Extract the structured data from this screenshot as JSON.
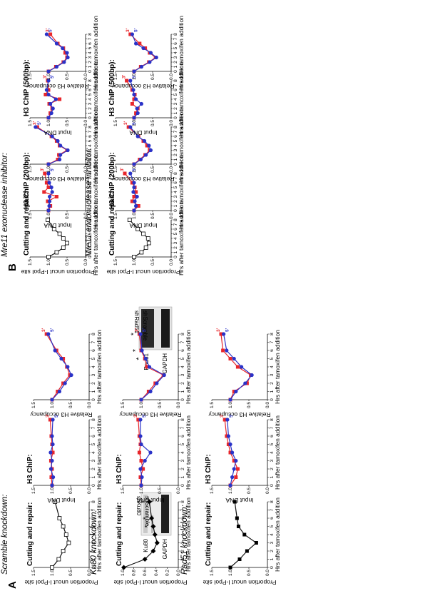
{
  "panel_labels": {
    "A": "A",
    "B": "B"
  },
  "groups": [
    {
      "title": "Scramble knockdown:"
    },
    {
      "title": "Ku80 knockdown:",
      "blot": {
        "lanes": [
          "shScramble",
          "shKu80"
        ],
        "rows": [
          "Ku80",
          "GAPDH"
        ]
      }
    },
    {
      "title": "Rad51 knockdown:",
      "blot": {
        "lanes": [
          "shScramble",
          "shRad51"
        ],
        "rows": [
          "Rad51",
          "GAPDH"
        ]
      }
    },
    {
      "title": "Mre11 exonuclease inhibitor:"
    },
    {
      "title": "Mre11 endonuclease inhibitor:"
    }
  ],
  "labels": {
    "cutting": "Cutting and repair:",
    "h3chip": "H3 ChIP:",
    "h3chip200": "H3 ChIP (200bp):",
    "h3chip500": "H3 ChIP (500bp):",
    "y_cut": "Proportion uncut I-PpoI site",
    "y_input": "Input DNA",
    "y_occ": "Relative H3 occupancy",
    "x": "Hrs after tamoxifen addition",
    "end3": "3'",
    "end5": "5'",
    "star": "*"
  },
  "colors": {
    "red": "#e8262b",
    "blue": "#2a32c8",
    "black": "#111111"
  },
  "chart_data": [
    {
      "type": "line",
      "panel": "A",
      "group": "Scramble knockdown",
      "title": "Cutting and repair:",
      "xlabel": "Hrs after tamoxifen addition",
      "ylabel": "Proportion uncut I-PpoI site",
      "xlim": [
        0,
        8
      ],
      "ylim": [
        0,
        1.5
      ],
      "x": [
        0,
        1,
        2,
        3,
        4,
        5,
        6,
        8
      ],
      "series": [
        {
          "values": [
            1.0,
            0.82,
            0.7,
            0.55,
            0.62,
            0.7,
            0.8,
            0.92
          ],
          "color": "black",
          "marker": "open-square"
        }
      ]
    },
    {
      "type": "line",
      "panel": "A",
      "group": "Scramble knockdown",
      "title": "H3 ChIP:",
      "xlabel": "Hrs after tamoxifen addition",
      "ylabel": "Input DNA",
      "xlim": [
        0,
        8
      ],
      "ylim": [
        0,
        1.5
      ],
      "x": [
        0,
        1,
        2,
        3,
        4,
        5,
        6,
        8
      ],
      "series": [
        {
          "name": "3'",
          "values": [
            1.0,
            1.02,
            1.0,
            1.03,
            0.98,
            1.0,
            1.02,
            1.05
          ],
          "color": "red"
        },
        {
          "name": "5'",
          "values": [
            1.0,
            0.97,
            1.03,
            1.0,
            1.04,
            0.98,
            1.0,
            0.98
          ],
          "color": "blue"
        }
      ]
    },
    {
      "type": "line",
      "panel": "A",
      "group": "Scramble knockdown",
      "title": "",
      "xlabel": "Hrs after tamoxifen addition",
      "ylabel": "Relative H3 occupancy",
      "xlim": [
        0,
        8
      ],
      "ylim": [
        0,
        1.5
      ],
      "x": [
        0,
        1,
        2,
        3,
        4,
        5,
        6,
        8
      ],
      "series": [
        {
          "name": "3'",
          "values": [
            1.0,
            0.85,
            0.7,
            0.52,
            0.6,
            0.7,
            0.88,
            1.15
          ],
          "color": "red"
        },
        {
          "name": "5'",
          "values": [
            1.0,
            0.8,
            0.65,
            0.48,
            0.58,
            0.75,
            0.92,
            1.1
          ],
          "color": "blue"
        }
      ]
    },
    {
      "type": "line",
      "panel": "A",
      "group": "Ku80 knockdown",
      "title": "Cutting and repair:",
      "xlabel": "Hrs after tamoxifen addition",
      "ylabel": "Proportion uncut I-PpoI site",
      "xlim": [
        0,
        8
      ],
      "ylim": [
        0,
        1.0
      ],
      "x": [
        0,
        1,
        2,
        3,
        4,
        5,
        6,
        8
      ],
      "series": [
        {
          "values": [
            0.98,
            0.6,
            0.45,
            0.38,
            0.42,
            0.45,
            0.48,
            0.52
          ],
          "color": "black",
          "marker": "filled-diamond"
        }
      ]
    },
    {
      "type": "line",
      "panel": "A",
      "group": "Ku80 knockdown",
      "title": "H3 ChIP:",
      "xlabel": "Hrs after tamoxifen addition",
      "ylabel": "Input DNA",
      "xlim": [
        0,
        8
      ],
      "ylim": [
        0,
        1.5
      ],
      "x": [
        0,
        1,
        2,
        3,
        4,
        5,
        6,
        8
      ],
      "series": [
        {
          "name": "3'",
          "values": [
            1.0,
            1.02,
            0.95,
            1.0,
            1.05,
            1.02,
            1.05,
            1.08
          ],
          "color": "red"
        },
        {
          "name": "5'",
          "values": [
            1.0,
            0.98,
            1.02,
            0.9,
            0.75,
            1.0,
            1.02,
            1.02
          ],
          "color": "blue"
        }
      ]
    },
    {
      "type": "line",
      "panel": "A",
      "group": "Ku80 knockdown",
      "title": "",
      "xlabel": "Hrs after tamoxifen addition",
      "ylabel": "Relative H3 occupancy",
      "xlim": [
        0,
        8
      ],
      "ylim": [
        0,
        1.5
      ],
      "x": [
        0,
        1,
        2,
        3,
        4,
        5,
        6,
        8
      ],
      "series": [
        {
          "name": "3'",
          "values": [
            1.0,
            0.8,
            0.62,
            0.4,
            0.85,
            0.9,
            1.0,
            1.05
          ],
          "color": "red"
        },
        {
          "name": "5'",
          "values": [
            1.0,
            0.75,
            0.58,
            0.38,
            0.78,
            0.88,
            0.98,
            1.02
          ],
          "color": "blue"
        }
      ]
    },
    {
      "type": "line",
      "panel": "A",
      "group": "Rad51 knockdown",
      "title": "Cutting and repair:",
      "xlabel": "Hrs after tamoxifen addition",
      "ylabel": "Proportion uncut I-PpoI site",
      "xlim": [
        0,
        8
      ],
      "ylim": [
        0,
        1.5
      ],
      "x": [
        0,
        1,
        2,
        3,
        4,
        5,
        6,
        8
      ],
      "series": [
        {
          "values": [
            1.0,
            0.75,
            0.55,
            0.3,
            0.62,
            0.78,
            0.82,
            0.88
          ],
          "color": "black",
          "marker": "filled-square"
        }
      ]
    },
    {
      "type": "line",
      "panel": "A",
      "group": "Rad51 knockdown",
      "title": "H3 ChIP:",
      "xlabel": "Hrs after tamoxifen addition",
      "ylabel": "Input DNA",
      "xlim": [
        0,
        8
      ],
      "ylim": [
        0,
        1.5
      ],
      "x": [
        0,
        1,
        2,
        3,
        4,
        5,
        6,
        8
      ],
      "series": [
        {
          "name": "3'",
          "values": [
            1.0,
            0.85,
            0.8,
            0.9,
            1.0,
            1.05,
            1.1,
            1.15
          ],
          "color": "red"
        },
        {
          "name": "5'",
          "values": [
            1.0,
            0.95,
            0.9,
            0.85,
            0.95,
            1.0,
            1.05,
            1.08
          ],
          "color": "blue"
        }
      ]
    },
    {
      "type": "line",
      "panel": "A",
      "group": "Rad51 knockdown",
      "title": "",
      "xlabel": "Hrs after tamoxifen addition",
      "ylabel": "Relative H3 occupancy",
      "xlim": [
        0,
        8
      ],
      "ylim": [
        0,
        1.5
      ],
      "x": [
        0,
        1,
        2,
        3,
        4,
        5,
        6,
        8
      ],
      "series": [
        {
          "name": "3'",
          "values": [
            1.0,
            0.9,
            0.55,
            0.45,
            0.8,
            1.0,
            1.2,
            1.25
          ],
          "color": "red"
        },
        {
          "name": "5'",
          "values": [
            1.0,
            0.85,
            0.6,
            0.42,
            0.7,
            0.9,
            1.1,
            1.18
          ],
          "color": "blue"
        }
      ]
    },
    {
      "type": "line",
      "panel": "B",
      "group": "Mre11 exonuclease inhibitor",
      "title": "Cutting and repair:",
      "xlabel": "Hrs after tamoxifen addition",
      "ylabel": "Proportion uncut I-PpoI site",
      "xlim": [
        0,
        8
      ],
      "ylim": [
        0,
        1.5
      ],
      "x": [
        0,
        1,
        2,
        3,
        4,
        5,
        6,
        8
      ],
      "series": [
        {
          "values": [
            1.0,
            0.78,
            0.6,
            0.5,
            0.6,
            0.7,
            0.85,
            1.02
          ],
          "color": "black",
          "marker": "open-square"
        }
      ]
    },
    {
      "type": "line",
      "panel": "B",
      "group": "Mre11 exonuclease inhibitor",
      "title": "H3 ChIP (200bp):",
      "xlabel": "Hrs after tamoxifen addition",
      "ylabel": "Input DNA",
      "xlim": [
        0,
        8
      ],
      "ylim": [
        0,
        1.5
      ],
      "x": [
        0,
        1,
        2,
        3,
        4,
        5,
        6,
        8
      ],
      "series": [
        {
          "name": "3'",
          "values": [
            1.0,
            0.95,
            1.02,
            0.78,
            1.12,
            1.0,
            1.05,
            1.1
          ],
          "color": "red"
        },
        {
          "name": "5'",
          "values": [
            1.0,
            0.98,
            0.97,
            0.97,
            0.9,
            0.92,
            0.98,
            1.0
          ],
          "color": "blue"
        }
      ]
    },
    {
      "type": "line",
      "panel": "B",
      "group": "Mre11 exonuclease inhibitor",
      "title": "",
      "xlabel": "Hrs after tamoxifen addition",
      "ylabel": "Relative H3 occupancy",
      "xlim": [
        0,
        8
      ],
      "ylim": [
        0,
        1.5
      ],
      "x": [
        0,
        1,
        2,
        3,
        4,
        5,
        6,
        8
      ],
      "series": [
        {
          "name": "3'",
          "values": [
            1.0,
            0.75,
            0.72,
            0.5,
            0.7,
            0.78,
            0.92,
            1.3
          ],
          "color": "red"
        },
        {
          "name": "5'",
          "values": [
            1.0,
            0.7,
            0.68,
            0.48,
            0.68,
            0.75,
            0.9,
            1.35
          ],
          "color": "blue"
        }
      ]
    },
    {
      "type": "line",
      "panel": "B",
      "group": "Mre11 exonuclease inhibitor",
      "title": "H3 ChIP (500bp):",
      "xlabel": "Hrs after tamoxifen addition",
      "ylabel": "Input DNA",
      "xlim": [
        0,
        8
      ],
      "ylim": [
        0,
        1.5
      ],
      "x": [
        0,
        1,
        2,
        3,
        4,
        5,
        6,
        8
      ],
      "series": [
        {
          "name": "3'",
          "values": [
            1.0,
            0.95,
            0.9,
            0.98,
            0.7,
            1.08,
            1.0,
            1.02
          ],
          "color": "red"
        },
        {
          "name": "5'",
          "values": [
            1.0,
            0.92,
            0.88,
            0.95,
            0.8,
            1.0,
            1.05,
            1.0
          ],
          "color": "blue"
        }
      ]
    },
    {
      "type": "line",
      "panel": "B",
      "group": "Mre11 exonuclease inhibitor",
      "title": "",
      "xlabel": "Hrs after tamoxifen addition",
      "ylabel": "Relative H3 occupancy",
      "xlim": [
        0,
        8
      ],
      "ylim": [
        0,
        1.5
      ],
      "x": [
        0,
        1,
        2,
        3,
        4,
        5,
        6,
        8
      ],
      "series": [
        {
          "name": "3'",
          "values": [
            1.0,
            0.8,
            0.6,
            0.5,
            0.55,
            0.6,
            0.75,
            0.95
          ],
          "color": "red"
        },
        {
          "name": "5'",
          "values": [
            1.0,
            0.78,
            0.58,
            0.48,
            0.5,
            0.62,
            0.78,
            1.05
          ],
          "color": "blue"
        }
      ]
    },
    {
      "type": "line",
      "panel": "B",
      "group": "Mre11 endonuclease inhibitor",
      "title": "Cutting and repair:",
      "xlabel": "Hrs after tamoxifen addition",
      "ylabel": "Proportion uncut I-PpoI site",
      "xlim": [
        0,
        8
      ],
      "ylim": [
        0,
        1.5
      ],
      "x": [
        0,
        1,
        2,
        3,
        4,
        5,
        6,
        8
      ],
      "series": [
        {
          "values": [
            1.0,
            0.8,
            0.68,
            0.6,
            0.62,
            0.75,
            0.9,
            1.12
          ],
          "color": "black",
          "marker": "open-square"
        }
      ]
    },
    {
      "type": "line",
      "panel": "B",
      "group": "Mre11 endonuclease inhibitor",
      "title": "H3 ChIP (200bp):",
      "xlabel": "Hrs after tamoxifen addition",
      "ylabel": "Input DNA",
      "xlim": [
        0,
        8
      ],
      "ylim": [
        0,
        1.5
      ],
      "x": [
        0,
        1,
        2,
        3,
        4,
        5,
        6,
        8
      ],
      "series": [
        {
          "name": "3'",
          "values": [
            1.0,
            0.88,
            1.05,
            1.0,
            0.95,
            0.98,
            1.05,
            1.25
          ],
          "color": "red"
        },
        {
          "name": "5'",
          "values": [
            1.0,
            0.95,
            0.98,
            0.92,
            1.02,
            1.0,
            1.0,
            1.1
          ],
          "color": "blue"
        }
      ]
    },
    {
      "type": "line",
      "panel": "B",
      "group": "Mre11 endonuclease inhibitor",
      "title": "",
      "xlabel": "Hrs after tamoxifen addition",
      "ylabel": "Relative H3 occupancy",
      "xlim": [
        0,
        8
      ],
      "ylim": [
        0,
        1.5
      ],
      "x": [
        0,
        1,
        2,
        3,
        4,
        5,
        6,
        8
      ],
      "series": [
        {
          "name": "3'",
          "values": [
            1.0,
            0.85,
            0.7,
            0.58,
            0.65,
            0.75,
            0.88,
            1.15
          ],
          "color": "red"
        },
        {
          "name": "5'",
          "values": [
            1.0,
            0.82,
            0.68,
            0.55,
            0.6,
            0.72,
            0.9,
            1.1
          ],
          "color": "blue"
        }
      ]
    },
    {
      "type": "line",
      "panel": "B",
      "group": "Mre11 endonuclease inhibitor",
      "title": "H3 ChIP (500bp):",
      "xlabel": "Hrs after tamoxifen addition",
      "ylabel": "Input DNA",
      "xlim": [
        0,
        8
      ],
      "ylim": [
        0,
        1.5
      ],
      "x": [
        0,
        1,
        2,
        3,
        4,
        5,
        6,
        8
      ],
      "series": [
        {
          "name": "3'",
          "values": [
            1.0,
            0.95,
            0.9,
            1.05,
            1.0,
            0.98,
            1.05,
            1.2
          ],
          "color": "red"
        },
        {
          "name": "5'",
          "values": [
            1.0,
            0.9,
            0.92,
            0.8,
            0.95,
            1.0,
            1.02,
            1.1
          ],
          "color": "blue"
        }
      ]
    },
    {
      "type": "line",
      "panel": "B",
      "group": "Mre11 endonuclease inhibitor",
      "title": "",
      "xlabel": "Hrs after tamoxifen addition",
      "ylabel": "Relative H3 occupancy",
      "xlim": [
        0,
        8
      ],
      "ylim": [
        0,
        1.5
      ],
      "x": [
        0,
        1,
        2,
        3,
        4,
        5,
        6,
        8
      ],
      "series": [
        {
          "name": "3'",
          "values": [
            1.0,
            0.82,
            0.6,
            0.42,
            0.58,
            0.7,
            0.85,
            1.1
          ],
          "color": "red"
        },
        {
          "name": "5'",
          "values": [
            1.0,
            0.8,
            0.58,
            0.4,
            0.55,
            0.75,
            0.95,
            1.05
          ],
          "color": "blue"
        }
      ]
    }
  ]
}
